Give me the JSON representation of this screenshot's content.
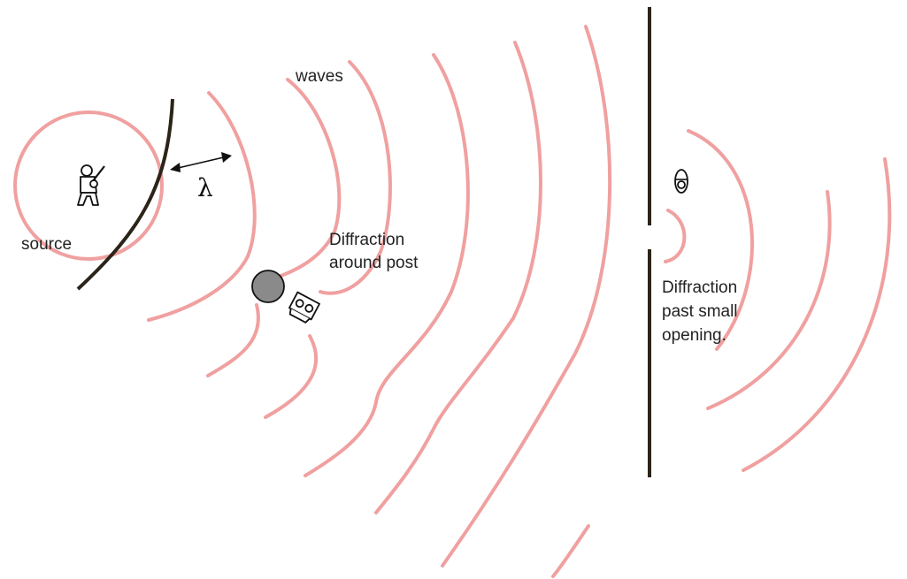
{
  "labels": {
    "source": "source",
    "waves": "waves",
    "lambda": "λ",
    "post_line1": "Diffraction",
    "post_line2": "around post",
    "opening_line1": "Diffraction",
    "opening_line2": "past small",
    "opening_line3": "opening."
  },
  "colors": {
    "wave": "#f0a0a0",
    "wall": "#2b2418",
    "post": "#8a8a8a",
    "ink": "#111111"
  },
  "icons": {
    "source": "musician-figure-icon",
    "listener_post": "listener-behind-post-icon",
    "listener_opening": "listener-behind-wall-icon"
  }
}
